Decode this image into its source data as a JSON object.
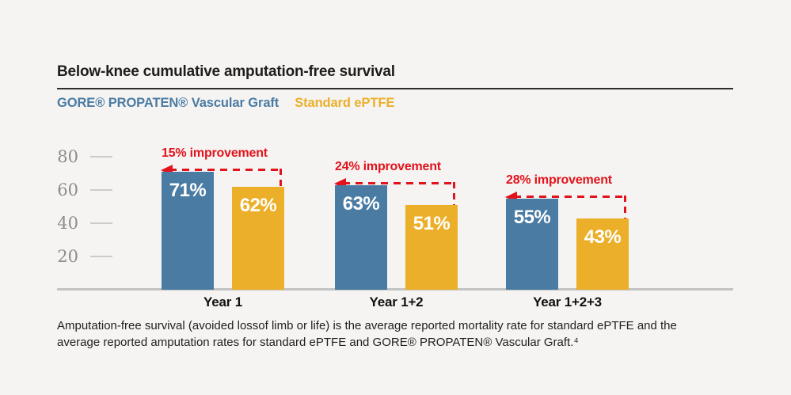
{
  "header": {
    "title": "Below-knee cumulative amputation-free survival"
  },
  "legend": {
    "series1": "GORE® PROPATEN® Vascular Graft",
    "series2": "Standard ePTFE"
  },
  "colors": {
    "propaten_blue": "#4a7ba3",
    "eptfe_yellow": "#ebaf2a",
    "annotation_red": "#e2131c",
    "background": "#f5f4f2",
    "axis_gray": "#8c8c8c"
  },
  "chart_data": {
    "type": "bar",
    "title": "Below-knee cumulative amputation-free survival",
    "categories": [
      "Year 1",
      "Year 1+2",
      "Year 1+2+3"
    ],
    "series": [
      {
        "name": "GORE® PROPATEN® Vascular Graft",
        "color": "#4a7ba3",
        "values": [
          71,
          63,
          55
        ]
      },
      {
        "name": "Standard ePTFE",
        "color": "#ebaf2a",
        "values": [
          62,
          51,
          43
        ]
      }
    ],
    "display_values": [
      [
        "71%",
        "62%"
      ],
      [
        "63%",
        "51%"
      ],
      [
        "55%",
        "43%"
      ]
    ],
    "annotations": [
      "15% improvement",
      "24% improvement",
      "28% improvement"
    ],
    "value_unit": "%",
    "yticks": [
      80,
      60,
      40,
      20
    ],
    "ylim": [
      0,
      85
    ],
    "grid": false,
    "legend_position": "top-left"
  },
  "footer": {
    "line1": "Amputation-free survival (avoided lossof limb or life) is the average reported mortality rate for standard ePTFE and the",
    "line2": "average reported amputation rates for standard ePTFE and GORE® PROPATEN® Vascular Graft.⁴"
  }
}
